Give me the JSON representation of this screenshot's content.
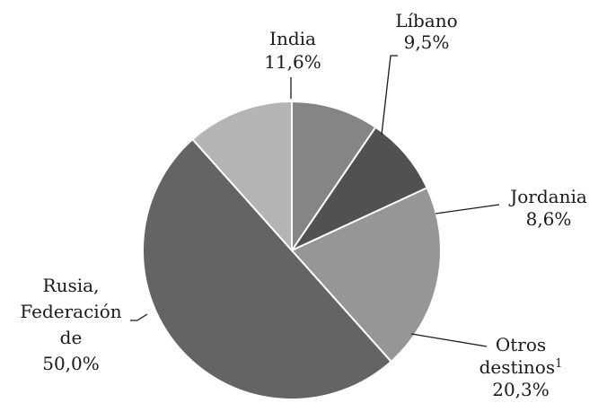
{
  "chart_data": {
    "type": "pie",
    "start": "top, clockwise",
    "legend": "none",
    "slices": [
      {
        "label": [
          "Líbano"
        ],
        "value": 9.5,
        "value_label": "9,5%",
        "color": "#858585"
      },
      {
        "label": [
          "Jordania"
        ],
        "value": 8.6,
        "value_label": "8,6%",
        "color": "#515151"
      },
      {
        "label": [
          "Otros",
          "destinos"
        ],
        "label_sup": "1",
        "value": 20.3,
        "value_label": "20,3%",
        "color": "#969696"
      },
      {
        "label": [
          "Rusia,",
          "Federación",
          "de"
        ],
        "value": 50.0,
        "value_label": "50,0%",
        "color": "#646464"
      },
      {
        "label": [
          "India"
        ],
        "value": 11.6,
        "value_label": "11,6%",
        "color": "#b4b4b4"
      }
    ]
  }
}
